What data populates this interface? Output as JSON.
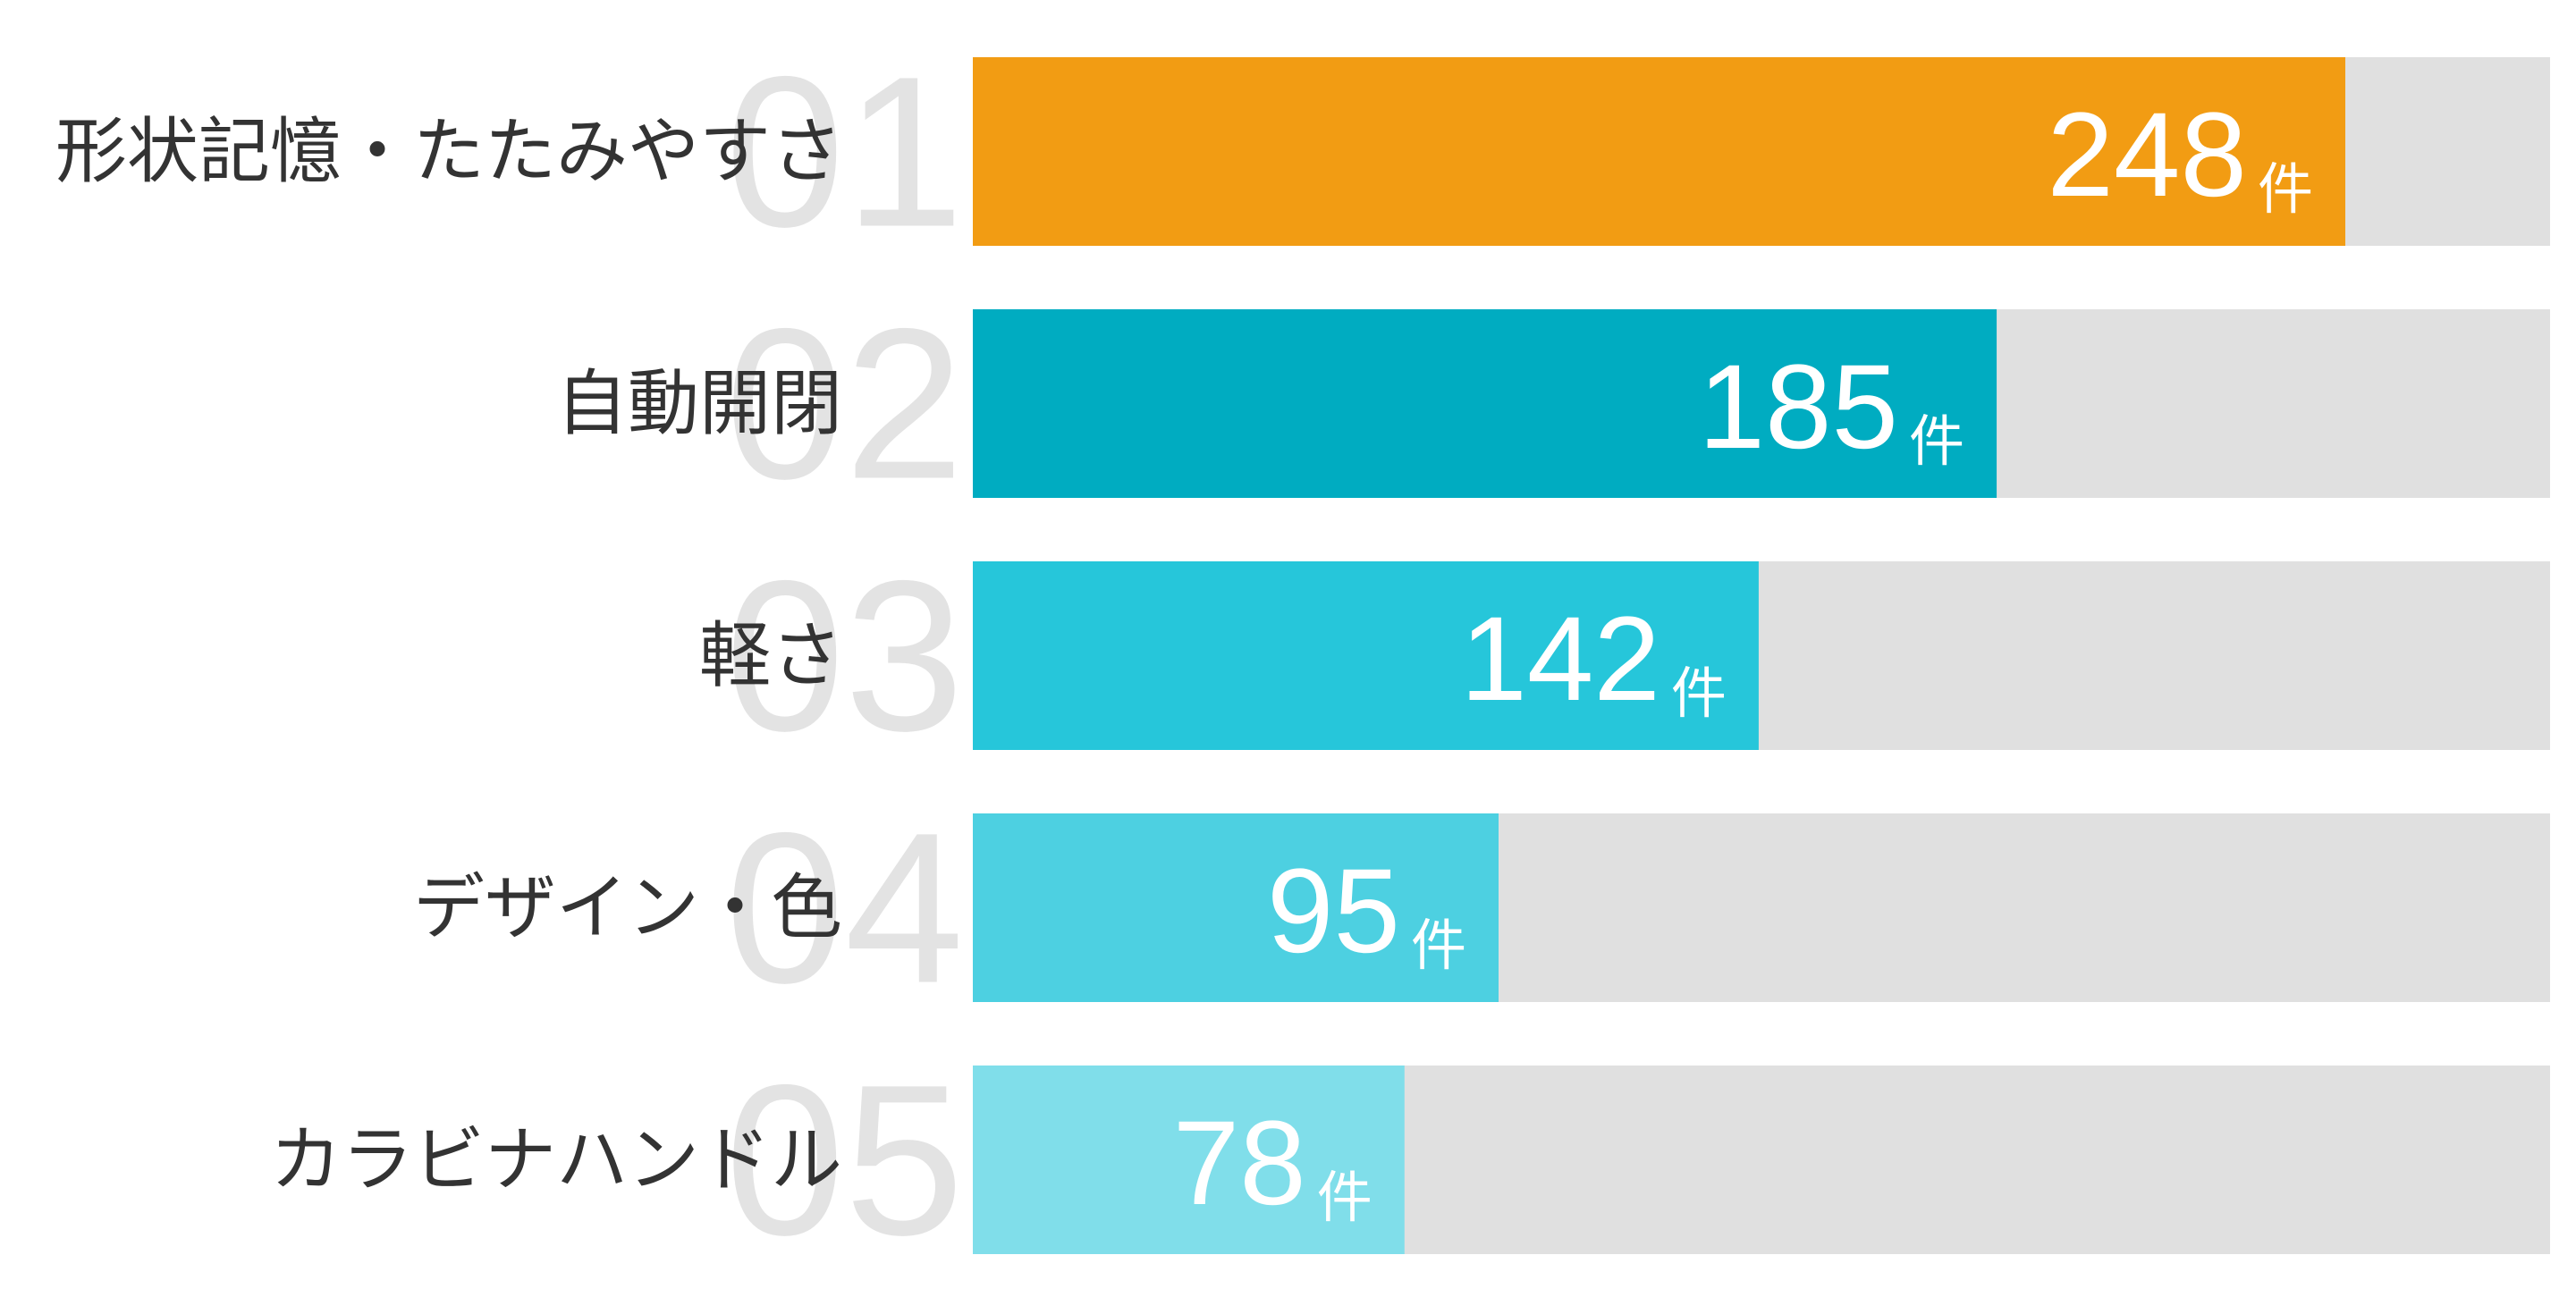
{
  "chart_data": {
    "type": "bar",
    "orientation": "horizontal",
    "categories": [
      "形状記憶・たたみやすさ",
      "自動開閉",
      "軽さ",
      "デザイン・色",
      "カラビナハンドル"
    ],
    "ranks": [
      "01",
      "02",
      "03",
      "04",
      "05"
    ],
    "values": [
      248,
      185,
      142,
      95,
      78
    ],
    "unit": "件",
    "colors": [
      "#f29c13",
      "#00acc1",
      "#26c6da",
      "#4dd0e1",
      "#80deea"
    ],
    "track_color": "#e0e0e0",
    "xlim": [
      0,
      285
    ]
  }
}
